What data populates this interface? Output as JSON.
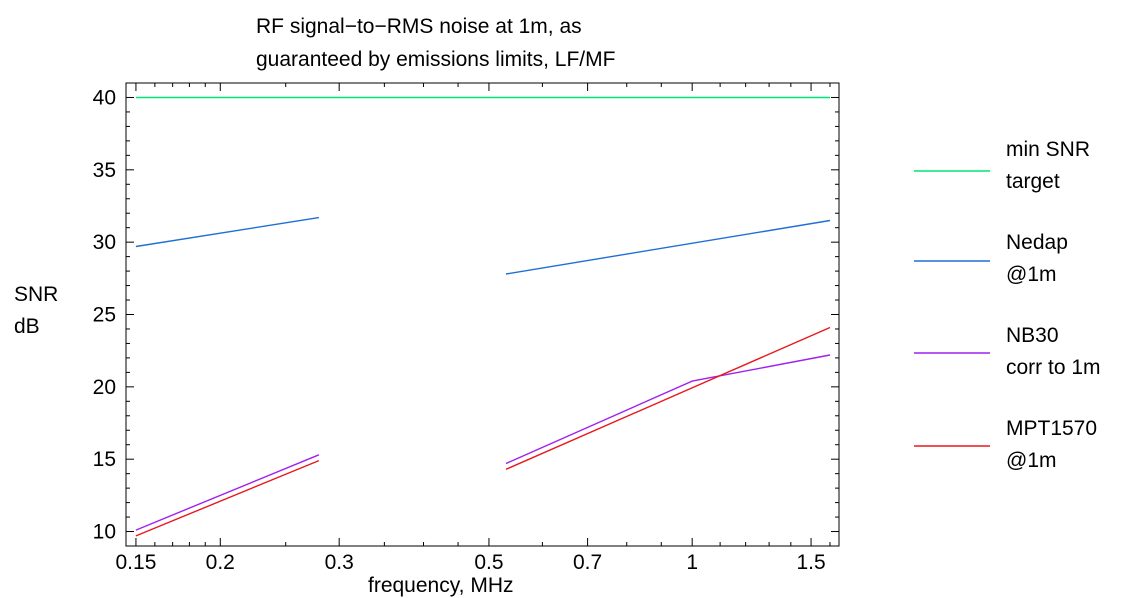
{
  "chart_data": {
    "type": "line",
    "title_lines": [
      "RF signal−to−RMS noise at 1m, as",
      "guaranteed by emissions limits, LF/MF"
    ],
    "xlabel": "frequency, MHz",
    "ylabel_lines": [
      "SNR",
      "dB"
    ],
    "x_scale": "log",
    "xlim": [
      0.145,
      1.65
    ],
    "ylim": [
      9,
      41
    ],
    "x_ticks": [
      0.15,
      0.2,
      0.3,
      0.5,
      0.7,
      1,
      1.5
    ],
    "x_tick_labels": [
      "0.15",
      "0.2",
      "0.3",
      "0.5",
      "0.7",
      "1",
      "1.5"
    ],
    "y_ticks": [
      10,
      15,
      20,
      25,
      30,
      35,
      40
    ],
    "y_tick_labels": [
      "10",
      "15",
      "20",
      "25",
      "30",
      "35",
      "40"
    ],
    "grid": false,
    "legend_position": "right",
    "series": [
      {
        "name_lines": [
          "min SNR",
          "target"
        ],
        "color": "#00e676",
        "segments": [
          [
            [
              0.15,
              40.0
            ],
            [
              1.6,
              40.0
            ]
          ]
        ]
      },
      {
        "name_lines": [
          "Nedap",
          "@1m"
        ],
        "color": "#1f6fd6",
        "segments": [
          [
            [
              0.15,
              29.7
            ],
            [
              0.28,
              31.7
            ]
          ],
          [
            [
              0.53,
              27.8
            ],
            [
              1.6,
              31.5
            ]
          ]
        ]
      },
      {
        "name_lines": [
          "NB30",
          "corr to 1m"
        ],
        "color": "#a020f0",
        "segments": [
          [
            [
              0.15,
              10.1
            ],
            [
              0.28,
              15.3
            ]
          ],
          [
            [
              0.53,
              14.7
            ],
            [
              1.0,
              20.4
            ],
            [
              1.6,
              22.2
            ]
          ]
        ]
      },
      {
        "name_lines": [
          "MPT1570",
          "@1m"
        ],
        "color": "#e8191c",
        "segments": [
          [
            [
              0.15,
              9.7
            ],
            [
              0.28,
              14.9
            ]
          ],
          [
            [
              0.53,
              14.3
            ],
            [
              1.6,
              24.1
            ]
          ]
        ]
      }
    ]
  }
}
